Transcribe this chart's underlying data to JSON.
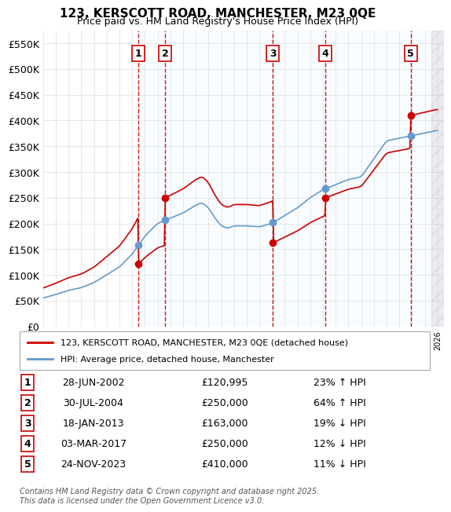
{
  "title": "123, KERSCOTT ROAD, MANCHESTER, M23 0QE",
  "subtitle": "Price paid vs. HM Land Registry's House Price Index (HPI)",
  "ylabel": "",
  "ylim": [
    0,
    575000
  ],
  "yticks": [
    0,
    50000,
    100000,
    150000,
    200000,
    250000,
    300000,
    350000,
    400000,
    450000,
    500000,
    550000
  ],
  "ytick_labels": [
    "£0",
    "£50K",
    "£100K",
    "£150K",
    "£200K",
    "£250K",
    "£300K",
    "£350K",
    "£400K",
    "£450K",
    "£500K",
    "£550K"
  ],
  "xlim_start": 1995.0,
  "xlim_end": 2026.5,
  "bg_color": "#ffffff",
  "grid_color": "#dddddd",
  "sale_color": "#cc0000",
  "hpi_color": "#6699cc",
  "sale_point_color": "#cc0000",
  "hpi_point_color": "#6699cc",
  "vline_color": "#cc0000",
  "shade_color": "#ddeeff",
  "legend_sale_label": "123, KERSCOTT ROAD, MANCHESTER, M23 0QE (detached house)",
  "legend_hpi_label": "HPI: Average price, detached house, Manchester",
  "footer": "Contains HM Land Registry data © Crown copyright and database right 2025.\nThis data is licensed under the Open Government Licence v3.0.",
  "sales": [
    {
      "num": 1,
      "date_str": "28-JUN-2002",
      "year": 2002.49,
      "price": 120995,
      "pct": "23%",
      "dir": "↑"
    },
    {
      "num": 2,
      "date_str": "30-JUL-2004",
      "year": 2004.58,
      "price": 250000,
      "pct": "64%",
      "dir": "↑"
    },
    {
      "num": 3,
      "date_str": "18-JAN-2013",
      "year": 2013.05,
      "price": 163000,
      "pct": "19%",
      "dir": "↓"
    },
    {
      "num": 4,
      "date_str": "03-MAR-2017",
      "year": 2017.17,
      "price": 250000,
      "pct": "12%",
      "dir": "↓"
    },
    {
      "num": 5,
      "date_str": "24-NOV-2023",
      "year": 2023.9,
      "price": 410000,
      "pct": "11%",
      "dir": "↓"
    }
  ],
  "table_rows": [
    {
      "num": "1",
      "date": "28-JUN-2002",
      "price": "£120,995",
      "pct": "23% ↑ HPI"
    },
    {
      "num": "2",
      "date": "30-JUL-2004",
      "price": "£250,000",
      "pct": "64% ↑ HPI"
    },
    {
      "num": "3",
      "date": "18-JAN-2013",
      "price": "£163,000",
      "pct": "19% ↓ HPI"
    },
    {
      "num": "4",
      "date": "03-MAR-2017",
      "price": "£250,000",
      "pct": "12% ↓ HPI"
    },
    {
      "num": "5",
      "date": "24-NOV-2023",
      "price": "£410,000",
      "pct": "11% ↓ HPI"
    }
  ]
}
